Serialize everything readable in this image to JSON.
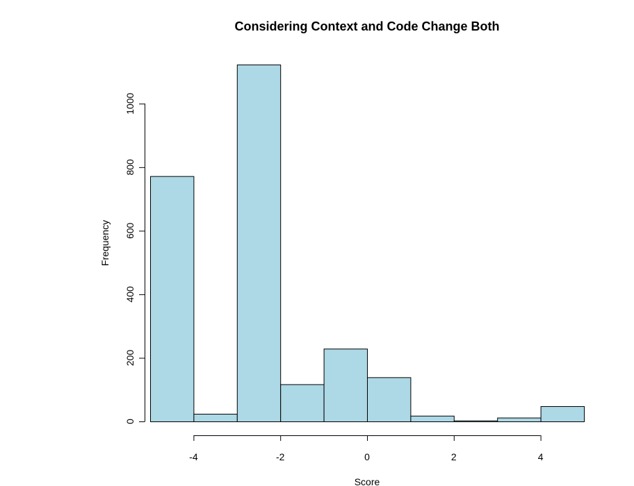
{
  "chart_data": {
    "type": "bar",
    "title": "Considering Context and Code Change Both",
    "xlabel": "Score",
    "ylabel": "Frequency",
    "bins": [
      {
        "x0": -5,
        "x1": -4,
        "value": 772
      },
      {
        "x0": -4,
        "x1": -3,
        "value": 24
      },
      {
        "x0": -3,
        "x1": -2,
        "value": 1123
      },
      {
        "x0": -2,
        "x1": -1,
        "value": 117
      },
      {
        "x0": -1,
        "x1": 0,
        "value": 229
      },
      {
        "x0": 0,
        "x1": 1,
        "value": 139
      },
      {
        "x0": 1,
        "x1": 2,
        "value": 18
      },
      {
        "x0": 2,
        "x1": 3,
        "value": 3
      },
      {
        "x0": 3,
        "x1": 4,
        "value": 12
      },
      {
        "x0": 4,
        "x1": 5,
        "value": 48
      }
    ],
    "xlim": [
      -5,
      5
    ],
    "ylim": [
      0,
      1123
    ],
    "x_ticks": [
      -4,
      -2,
      0,
      2,
      4
    ],
    "y_ticks": [
      0,
      200,
      400,
      600,
      800,
      1000
    ],
    "grid": false,
    "bar_color": "#add8e6",
    "edge_color": "#000000"
  }
}
